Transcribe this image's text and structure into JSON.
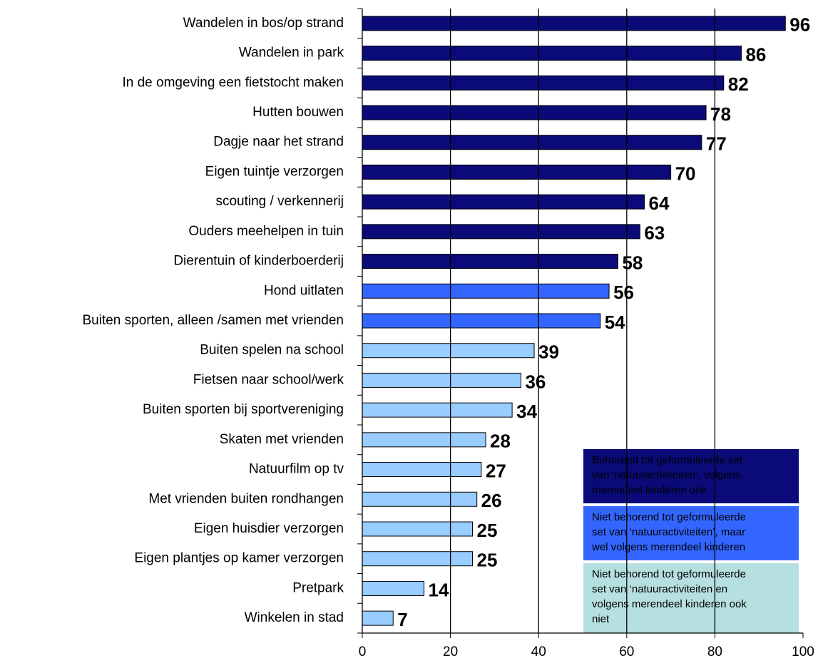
{
  "chart_data": {
    "type": "bar",
    "orientation": "horizontal",
    "categories": [
      "Wandelen in bos/op strand",
      "Wandelen in park",
      "In de omgeving een fietstocht maken",
      "Hutten bouwen",
      "Dagje naar het strand",
      "Eigen tuintje verzorgen",
      "scouting / verkennerij",
      "Ouders meehelpen in tuin",
      "Dierentuin of kinderboerderij",
      "Hond uitlaten",
      "Buiten sporten, alleen /samen met vrienden",
      "Buiten spelen na school",
      "Fietsen naar school/werk",
      "Buiten sporten bij  sportvereniging",
      "Skaten met vrienden",
      "Natuurfilm op tv",
      "Met vrienden buiten rondhangen",
      "Eigen huisdier  verzorgen",
      "Eigen plantjes op kamer verzorgen",
      "Pretpark",
      "Winkelen in stad"
    ],
    "values": [
      96,
      86,
      82,
      78,
      77,
      70,
      64,
      63,
      58,
      56,
      54,
      39,
      36,
      34,
      28,
      27,
      26,
      25,
      25,
      14,
      7
    ],
    "colors": [
      "#0a0a78",
      "#0a0a78",
      "#0a0a78",
      "#0a0a78",
      "#0a0a78",
      "#0a0a78",
      "#0a0a78",
      "#0a0a78",
      "#0a0a78",
      "#3366ff",
      "#3366ff",
      "#99ccff",
      "#99ccff",
      "#99ccff",
      "#99ccff",
      "#99ccff",
      "#99ccff",
      "#99ccff",
      "#99ccff",
      "#99ccff",
      "#99ccff"
    ],
    "xlim": [
      0,
      100
    ],
    "xticks": [
      0,
      20,
      40,
      60,
      80,
      100
    ],
    "grid": true,
    "legend": [
      {
        "color": "#0a0a78",
        "text_color": "#ffffff",
        "lines": [
          "Behorend tot geformuleerde set",
          "van ‘natuuractiviteiten’, volgens",
          "merendeel kinderen ook"
        ]
      },
      {
        "color": "#3366ff",
        "text_color": "#ffffff",
        "lines": [
          "Niet behorend tot geformuleerde",
          "set van ‘natuuractiviteiten’, maar",
          "wel volgens merendeel kinderen"
        ]
      },
      {
        "color": "#b6dfe0",
        "text_color": "#000000",
        "lines": [
          "Niet behorend tot geformuleerde",
          "set van ‘natuuractiviteiten en",
          "volgens merendeel kinderen ook",
          "niet"
        ]
      }
    ]
  }
}
